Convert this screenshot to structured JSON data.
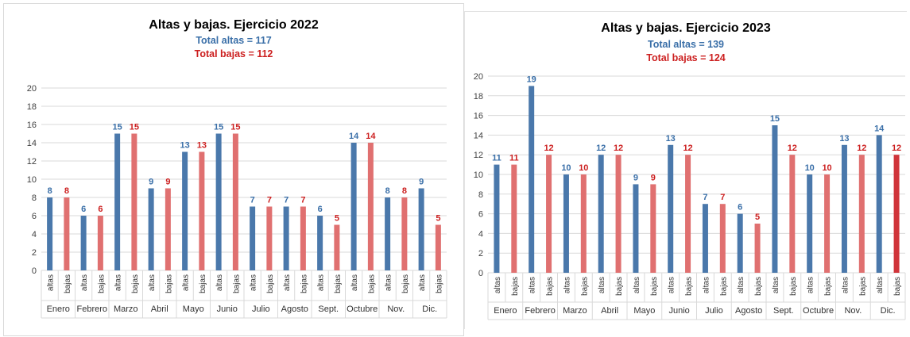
{
  "colors": {
    "altas": "#4a78ab",
    "bajas": "#e07070",
    "bajas_last_2023": "#d0343a",
    "total_altas_text": "#3a6fa8",
    "total_bajas_text": "#cc1f1f",
    "grid": "#d9d9d9"
  },
  "chart_data": [
    {
      "type": "bar",
      "title": "Altas y bajas. Ejercicio 2022",
      "subtitle_altas": "Total altas = 117",
      "subtitle_bajas": "Total bajas = 112",
      "ylim": [
        0,
        20
      ],
      "yticks": [
        0,
        2,
        4,
        6,
        8,
        10,
        12,
        14,
        16,
        18,
        20
      ],
      "grid": true,
      "bar_labels": [
        "altas",
        "bajas"
      ],
      "categories": [
        "Enero",
        "Febrero",
        "Marzo",
        "Abril",
        "Mayo",
        "Junio",
        "Julio",
        "Agosto",
        "Sept.",
        "Octubre",
        "Nov.",
        "Dic."
      ],
      "series": [
        {
          "name": "altas",
          "values": [
            8,
            6,
            15,
            9,
            13,
            15,
            7,
            7,
            6,
            14,
            8,
            9
          ]
        },
        {
          "name": "bajas",
          "values": [
            8,
            6,
            15,
            9,
            13,
            15,
            7,
            7,
            5,
            14,
            8,
            5
          ]
        }
      ]
    },
    {
      "type": "bar",
      "title": "Altas y bajas. Ejercicio 2023",
      "subtitle_altas": "Total altas = 139",
      "subtitle_bajas": "Total bajas = 124",
      "ylim": [
        0,
        20
      ],
      "yticks": [
        0,
        2,
        4,
        6,
        8,
        10,
        12,
        14,
        16,
        18,
        20
      ],
      "grid": true,
      "bar_labels": [
        "altas",
        "bajas"
      ],
      "categories": [
        "Enero",
        "Febrero",
        "Marzo",
        "Abril",
        "Mayo",
        "Junio",
        "Julio",
        "Agosto",
        "Sept.",
        "Octubre",
        "Nov.",
        "Dic."
      ],
      "series": [
        {
          "name": "altas",
          "values": [
            11,
            19,
            10,
            12,
            9,
            13,
            7,
            6,
            15,
            10,
            13,
            14
          ]
        },
        {
          "name": "bajas",
          "values": [
            11,
            12,
            10,
            12,
            9,
            12,
            7,
            5,
            12,
            10,
            12,
            12
          ]
        }
      ]
    }
  ]
}
